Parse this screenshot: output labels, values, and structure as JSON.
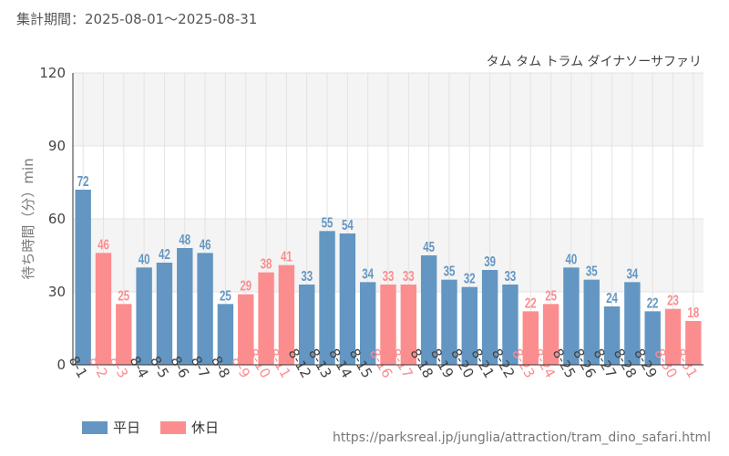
{
  "header": {
    "period_label": "集計期間：2025-08-01～2025-08-31"
  },
  "footer": {
    "source_url": "https://parksreal.jp/junglia/attraction/tram_dino_safari.html"
  },
  "legend": {
    "weekday_label": "平日",
    "holiday_label": "休日"
  },
  "colors": {
    "weekday": "#6396c2",
    "holiday": "#fc8d8f",
    "band": "#f4f4f4",
    "grid": "#e3e3e3",
    "text": "#444444",
    "muted": "#777777"
  },
  "chart_data": {
    "type": "bar",
    "title": "タム タム トラム ダイナソーサファリ",
    "ylabel": "待ち時間（分）min",
    "xlabel": "",
    "ylim": [
      0,
      120
    ],
    "yticks": [
      0,
      30,
      60,
      90,
      120
    ],
    "categories": [
      "8-1",
      "8-2",
      "8-3",
      "8-4",
      "8-5",
      "8-6",
      "8-7",
      "8-8",
      "8-9",
      "8-10",
      "8-11",
      "8-12",
      "8-13",
      "8-14",
      "8-15",
      "8-16",
      "8-17",
      "8-18",
      "8-19",
      "8-20",
      "8-21",
      "8-22",
      "8-23",
      "8-24",
      "8-25",
      "8-26",
      "8-27",
      "8-28",
      "8-29",
      "8-30",
      "8-31"
    ],
    "values": [
      72,
      46,
      25,
      40,
      42,
      48,
      46,
      25,
      29,
      38,
      41,
      33,
      55,
      54,
      34,
      33,
      33,
      45,
      35,
      32,
      39,
      33,
      22,
      25,
      40,
      35,
      24,
      34,
      22,
      23,
      18
    ],
    "day_type": [
      "weekday",
      "holiday",
      "holiday",
      "weekday",
      "weekday",
      "weekday",
      "weekday",
      "weekday",
      "holiday",
      "holiday",
      "holiday",
      "weekday",
      "weekday",
      "weekday",
      "weekday",
      "holiday",
      "holiday",
      "weekday",
      "weekday",
      "weekday",
      "weekday",
      "weekday",
      "holiday",
      "holiday",
      "weekday",
      "weekday",
      "weekday",
      "weekday",
      "weekday",
      "holiday",
      "holiday"
    ],
    "series": [
      {
        "name": "平日",
        "type": "weekday"
      },
      {
        "name": "休日",
        "type": "holiday"
      }
    ],
    "grid": true,
    "legend_position": "bottom-left"
  }
}
